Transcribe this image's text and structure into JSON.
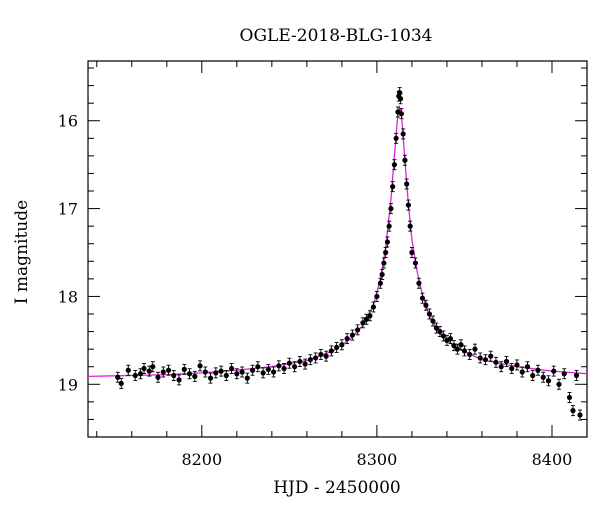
{
  "chart_data": {
    "type": "scatter",
    "title": "OGLE-2018-BLG-1034",
    "xlabel": "HJD - 2450000",
    "ylabel": "I magnitude",
    "xlim": [
      8135,
      8420
    ],
    "ylim": [
      19.6,
      15.32
    ],
    "y_inverted": true,
    "xticks": [
      8200,
      8300,
      8400
    ],
    "yticks": [
      16,
      17,
      18,
      19
    ],
    "grid": false,
    "colors": {
      "points": "#000000",
      "model": "#e020e0"
    },
    "model_curve": {
      "description_free": true,
      "x": [
        8135,
        8160,
        8180,
        8200,
        8220,
        8240,
        8260,
        8275,
        8285,
        8292,
        8298,
        8302,
        8305,
        8308,
        8310,
        8312,
        8313,
        8314,
        8316,
        8318,
        8320,
        8323,
        8326,
        8330,
        8336,
        8345,
        8360,
        8380,
        8400,
        8420
      ],
      "y": [
        18.91,
        18.9,
        18.89,
        18.87,
        18.84,
        18.8,
        18.73,
        18.62,
        18.48,
        18.33,
        18.1,
        17.8,
        17.45,
        16.9,
        16.4,
        15.92,
        15.85,
        15.92,
        16.45,
        16.95,
        17.35,
        17.72,
        17.98,
        18.22,
        18.42,
        18.58,
        18.72,
        18.8,
        18.85,
        18.88
      ]
    },
    "series": [
      {
        "x": [
          8152,
          8154,
          8158,
          8162,
          8165,
          8167,
          8170,
          8172,
          8175,
          8178,
          8181,
          8184,
          8187,
          8190,
          8193,
          8196,
          8199,
          8202,
          8205,
          8208,
          8211,
          8214,
          8217,
          8220,
          8223,
          8226,
          8229,
          8232,
          8235,
          8238,
          8241,
          8244,
          8247,
          8250,
          8253,
          8256,
          8259,
          8262,
          8265,
          8268,
          8271,
          8274,
          8277,
          8280,
          8283,
          8286,
          8289,
          8292,
          8294,
          8296,
          8298,
          8300,
          8302,
          8303,
          8304,
          8305,
          8306,
          8307,
          8308,
          8309,
          8310,
          8311,
          8312,
          8312.5,
          8313,
          8313.5,
          8314,
          8315,
          8316,
          8317,
          8318,
          8319,
          8320,
          8322,
          8324,
          8326,
          8328,
          8330,
          8332,
          8334,
          8336,
          8338,
          8340,
          8342,
          8344,
          8346,
          8348,
          8350,
          8353,
          8356,
          8359,
          8362,
          8365,
          8368,
          8371,
          8374,
          8377,
          8380,
          8383,
          8386,
          8389,
          8392,
          8395,
          8398,
          8401,
          8404,
          8407,
          8410,
          8412,
          8414,
          8416
        ],
        "y": [
          18.92,
          18.99,
          18.84,
          18.9,
          18.88,
          18.82,
          18.85,
          18.8,
          18.92,
          18.86,
          18.84,
          18.9,
          18.95,
          18.83,
          18.88,
          18.91,
          18.79,
          18.86,
          18.93,
          18.87,
          18.85,
          18.9,
          18.82,
          18.88,
          18.86,
          18.93,
          18.84,
          18.8,
          18.87,
          18.83,
          18.86,
          18.79,
          18.82,
          18.76,
          18.8,
          18.74,
          18.77,
          18.72,
          18.7,
          18.66,
          18.68,
          18.62,
          18.58,
          18.55,
          18.48,
          18.44,
          18.38,
          18.3,
          18.26,
          18.22,
          18.12,
          18.0,
          17.85,
          17.75,
          17.62,
          17.5,
          17.38,
          17.2,
          17.0,
          16.75,
          16.5,
          16.2,
          15.9,
          15.72,
          15.68,
          15.75,
          15.92,
          16.15,
          16.45,
          16.72,
          16.96,
          17.2,
          17.5,
          17.62,
          17.85,
          18.02,
          18.1,
          18.2,
          18.28,
          18.36,
          18.4,
          18.45,
          18.5,
          18.48,
          18.56,
          18.6,
          18.55,
          18.62,
          18.66,
          18.6,
          18.7,
          18.72,
          18.68,
          18.75,
          18.8,
          18.74,
          18.82,
          18.78,
          18.86,
          18.8,
          18.9,
          18.84,
          18.92,
          18.96,
          18.85,
          19.0,
          18.88,
          19.15,
          19.3,
          18.9,
          19.35
        ]
      }
    ]
  }
}
